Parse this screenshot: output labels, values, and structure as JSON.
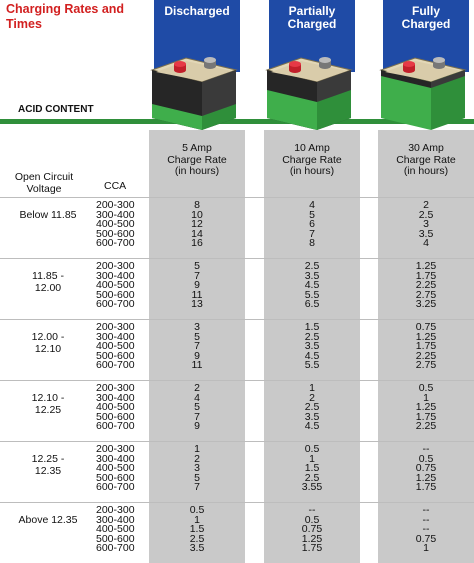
{
  "title": "Charging Rates and Times",
  "acid_label": "ACID CONTENT",
  "columns": [
    {
      "state": "Discharged",
      "rate": "5 Amp Charge Rate (in hours)"
    },
    {
      "state": "Partially Charged",
      "rate": "10 Amp Charge Rate (in hours)"
    },
    {
      "state": "Fully Charged",
      "rate": "30 Amp Charge Rate (in hours)"
    }
  ],
  "header_ocv": "Open Circuit Voltage",
  "header_cca": "CCA",
  "colors": {
    "title": "#d22020",
    "header_blue": "#1f4ba6",
    "acid_green": "#2f8f3a",
    "column_gray": "#c9c9c9"
  },
  "groups": [
    {
      "voltage": "Below 11.85",
      "cca": [
        "200-300",
        "300-400",
        "400-500",
        "500-600",
        "600-700"
      ],
      "a5": [
        "8",
        "10",
        "12",
        "14",
        "16"
      ],
      "a10": [
        "4",
        "5",
        "6",
        "7",
        "8"
      ],
      "a30": [
        "2",
        "2.5",
        "3",
        "3.5",
        "4"
      ]
    },
    {
      "voltage": "11.85 - 12.00",
      "cca": [
        "200-300",
        "300-400",
        "400-500",
        "500-600",
        "600-700"
      ],
      "a5": [
        "5",
        "7",
        "9",
        "11",
        "13"
      ],
      "a10": [
        "2.5",
        "3.5",
        "4.5",
        "5.5",
        "6.5"
      ],
      "a30": [
        "1.25",
        "1.75",
        "2.25",
        "2.75",
        "3.25"
      ]
    },
    {
      "voltage": "12.00 - 12.10",
      "cca": [
        "200-300",
        "300-400",
        "400-500",
        "500-600",
        "600-700"
      ],
      "a5": [
        "3",
        "5",
        "7",
        "9",
        "11"
      ],
      "a10": [
        "1.5",
        "2.5",
        "3.5",
        "4.5",
        "5.5"
      ],
      "a30": [
        "0.75",
        "1.25",
        "1.75",
        "2.25",
        "2.75"
      ]
    },
    {
      "voltage": "12.10 - 12.25",
      "cca": [
        "200-300",
        "300-400",
        "400-500",
        "500-600",
        "600-700"
      ],
      "a5": [
        "2",
        "4",
        "5",
        "7",
        "9"
      ],
      "a10": [
        "1",
        "2",
        "2.5",
        "3.5",
        "4.5"
      ],
      "a30": [
        "0.5",
        "1",
        "1.25",
        "1.75",
        "2.25"
      ]
    },
    {
      "voltage": "12.25 - 12.35",
      "cca": [
        "200-300",
        "300-400",
        "400-500",
        "500-600",
        "600-700"
      ],
      "a5": [
        "1",
        "2",
        "3",
        "5",
        "7"
      ],
      "a10": [
        "0.5",
        "1",
        "1.5",
        "2.5",
        "3.55"
      ],
      "a30": [
        "--",
        "0.5",
        "0.75",
        "1.25",
        "1.75"
      ]
    },
    {
      "voltage": "Above 12.35",
      "cca": [
        "200-300",
        "300-400",
        "400-500",
        "500-600",
        "600-700"
      ],
      "a5": [
        "0.5",
        "1",
        "1.5",
        "2.5",
        "3.5"
      ],
      "a10": [
        "--",
        "0.5",
        "0.75",
        "1.25",
        "1.75"
      ],
      "a30": [
        "--",
        "--",
        "--",
        "0.75",
        "1"
      ]
    }
  ]
}
